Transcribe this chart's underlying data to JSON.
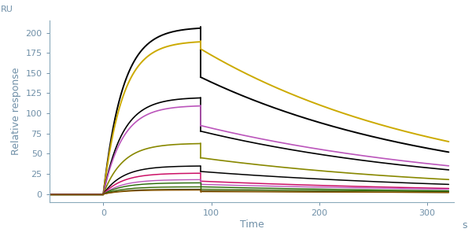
{
  "xlabel": "Time",
  "xlabel_suffix": "s",
  "ylabel": "Relative response",
  "ylabel_top": "RU",
  "xlim": [
    -50,
    325
  ],
  "ylim": [
    -10,
    215
  ],
  "yticks": [
    0,
    25,
    50,
    75,
    100,
    125,
    150,
    175,
    200
  ],
  "xticks": [
    0,
    100,
    200,
    300
  ],
  "baseline_start": -50,
  "baseline_end": 0,
  "assoc_start": 0,
  "assoc_end": 90,
  "dissoc_start": 90,
  "dissoc_end": 320,
  "curves": [
    {
      "color": "#000000",
      "assoc_peak": 207,
      "drop_to": 145,
      "dissoc_end": 52,
      "koff": 0.004,
      "lw": 1.4
    },
    {
      "color": "#ccaa00",
      "assoc_peak": 190,
      "drop_to": 180,
      "dissoc_end": 65,
      "koff": 0.0025,
      "lw": 1.4
    },
    {
      "color": "#000000",
      "assoc_peak": 120,
      "drop_to": 78,
      "dissoc_end": 30,
      "koff": 0.005,
      "lw": 1.2
    },
    {
      "color": "#bb55bb",
      "assoc_peak": 110,
      "drop_to": 85,
      "dissoc_end": 35,
      "koff": 0.0045,
      "lw": 1.2
    },
    {
      "color": "#888800",
      "assoc_peak": 63,
      "drop_to": 45,
      "dissoc_end": 18,
      "koff": 0.006,
      "lw": 1.2
    },
    {
      "color": "#000000",
      "assoc_peak": 35,
      "drop_to": 28,
      "dissoc_end": 12,
      "koff": 0.007,
      "lw": 1.1
    },
    {
      "color": "#cc1166",
      "assoc_peak": 26,
      "drop_to": 16,
      "dissoc_end": 7,
      "koff": 0.0085,
      "lw": 1.1
    },
    {
      "color": "#bb55bb",
      "assoc_peak": 18,
      "drop_to": 12,
      "dissoc_end": 6,
      "koff": 0.009,
      "lw": 1.0
    },
    {
      "color": "#226600",
      "assoc_peak": 14,
      "drop_to": 9,
      "dissoc_end": 4,
      "koff": 0.01,
      "lw": 1.0
    },
    {
      "color": "#336600",
      "assoc_peak": 9,
      "drop_to": 6,
      "dissoc_end": 3,
      "koff": 0.011,
      "lw": 1.0
    },
    {
      "color": "#444400",
      "assoc_peak": 6,
      "drop_to": 4,
      "dissoc_end": 2,
      "koff": 0.0115,
      "lw": 1.0
    },
    {
      "color": "#885500",
      "assoc_peak": 5,
      "drop_to": 3,
      "dissoc_end": 2,
      "koff": 0.0115,
      "lw": 1.0
    }
  ],
  "bg_color": "#ffffff",
  "axis_color": "#8aaabb",
  "text_color": "#7090a8",
  "spine_lw": 0.8
}
